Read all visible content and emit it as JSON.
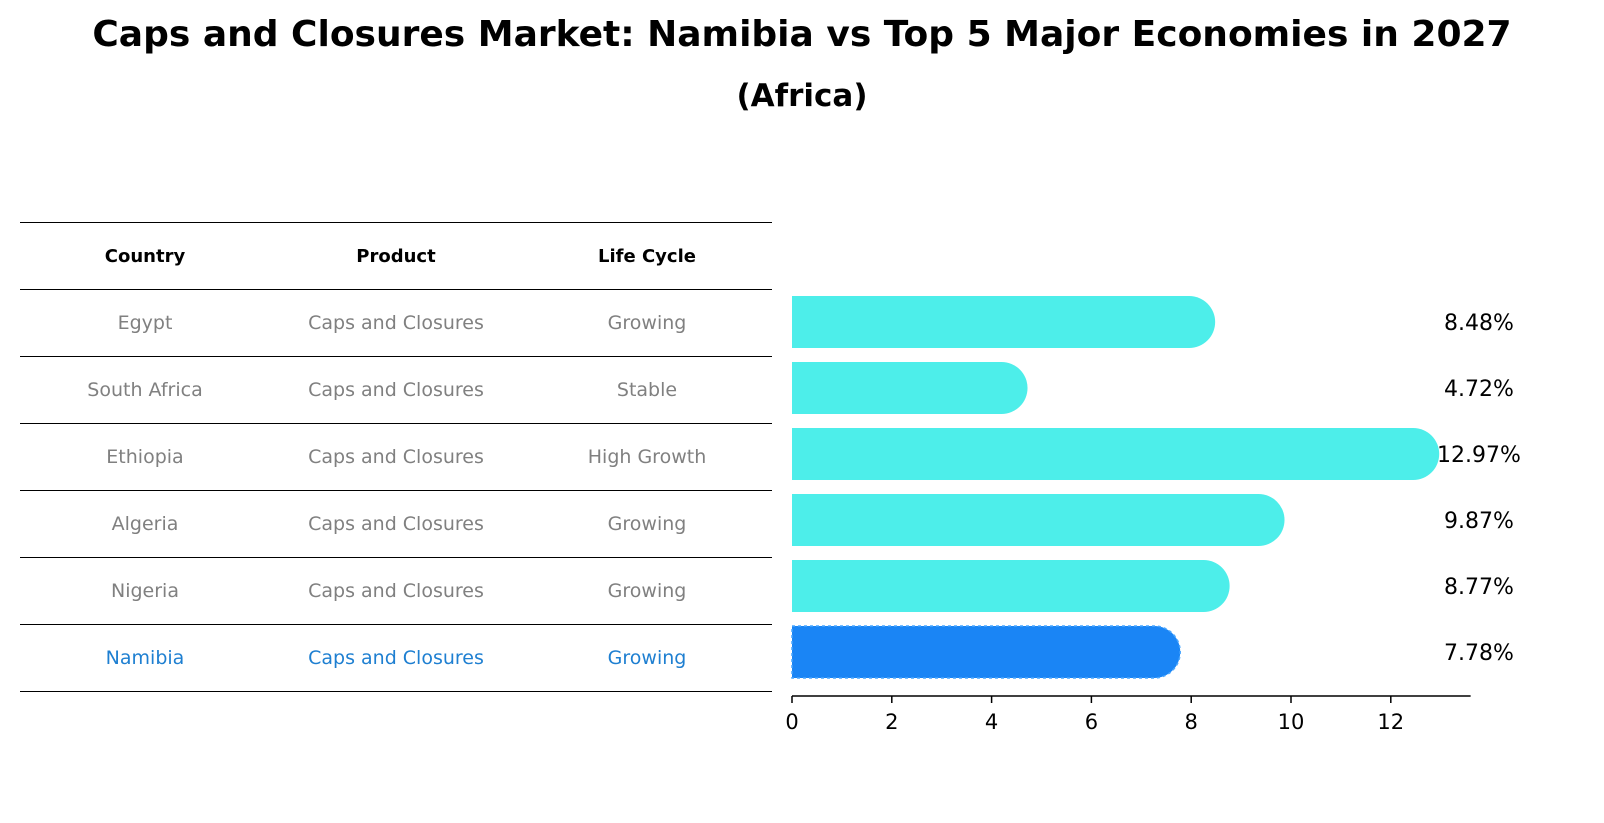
{
  "title": "Caps and Closures Market: Namibia vs Top 5 Major Economies in 2027",
  "subtitle": "(Africa)",
  "table": {
    "headers": [
      "Country",
      "Product",
      "Life Cycle"
    ],
    "rows": [
      [
        "Egypt",
        "Caps and Closures",
        "Growing"
      ],
      [
        "South Africa",
        "Caps and Closures",
        "Stable"
      ],
      [
        "Ethiopia",
        "Caps and Closures",
        "High Growth"
      ],
      [
        "Algeria",
        "Caps and Closures",
        "Growing"
      ],
      [
        "Nigeria",
        "Caps and Closures",
        "Growing"
      ],
      [
        "Namibia",
        "Caps and Closures",
        "Growing"
      ]
    ]
  },
  "chart_data": {
    "type": "bar",
    "orientation": "horizontal",
    "categories": [
      "Egypt",
      "South Africa",
      "Ethiopia",
      "Algeria",
      "Nigeria",
      "Namibia"
    ],
    "values": [
      8.48,
      4.72,
      12.97,
      9.87,
      8.77,
      7.78
    ],
    "labels": [
      "8.48%",
      "4.72%",
      "12.97%",
      "9.87%",
      "8.77%",
      "7.78%"
    ],
    "highlight": "Namibia",
    "xlim": [
      0,
      13.6
    ],
    "xticks": [
      0,
      2,
      4,
      6,
      8,
      10,
      12
    ],
    "colors": {
      "default": "#4deeea",
      "highlight": "#1a85f5"
    }
  }
}
